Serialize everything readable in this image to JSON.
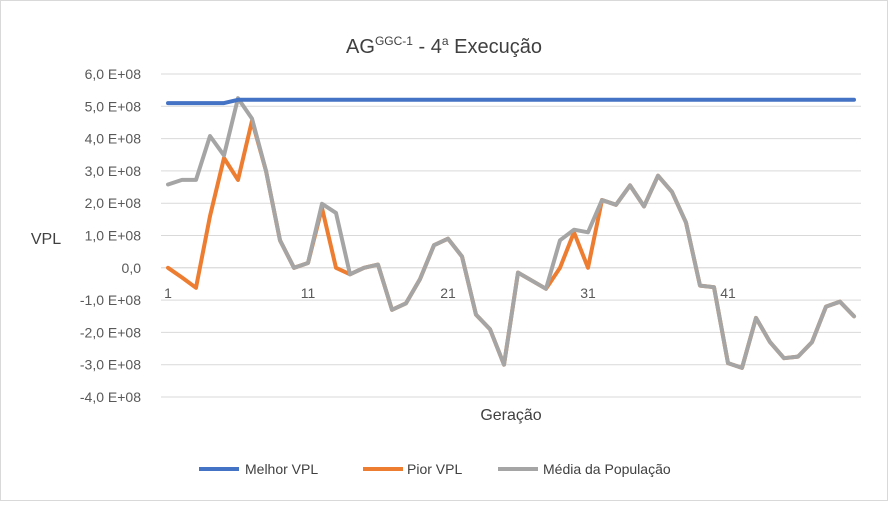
{
  "chart_data": {
    "type": "line",
    "title": {
      "main": "AG",
      "superscript": "GGC-1",
      "suffix": " - 4",
      "suffix_superscript": "a",
      "tail": " Execução"
    },
    "xlabel": "Geração",
    "ylabel": "VPL",
    "ylim": [
      -400000000,
      600000000
    ],
    "y_ticks": [
      {
        "value": 600000000,
        "label": "6,0 E+08"
      },
      {
        "value": 500000000,
        "label": "5,0 E+08"
      },
      {
        "value": 400000000,
        "label": "4,0 E+08"
      },
      {
        "value": 300000000,
        "label": "3,0 E+08"
      },
      {
        "value": 200000000,
        "label": "2,0 E+08"
      },
      {
        "value": 100000000,
        "label": "1,0 E+08"
      },
      {
        "value": 0,
        "label": "0,0"
      },
      {
        "value": -100000000,
        "label": "-1,0 E+08"
      },
      {
        "value": -200000000,
        "label": "-2,0 E+08"
      },
      {
        "value": -300000000,
        "label": "-3,0 E+08"
      },
      {
        "value": -400000000,
        "label": "-4,0 E+08"
      }
    ],
    "x_ticks": [
      1,
      11,
      21,
      31,
      41
    ],
    "x_count": 50,
    "grid": true,
    "legend_position": "bottom",
    "series": [
      {
        "name": "Melhor VPL",
        "color": "#4472c4",
        "values": [
          510000000,
          510000000,
          510000000,
          510000000,
          510000000,
          520000000,
          520000000,
          520000000,
          520000000,
          520000000,
          520000000,
          520000000,
          520000000,
          520000000,
          520000000,
          520000000,
          520000000,
          520000000,
          520000000,
          520000000,
          520000000,
          520000000,
          520000000,
          520000000,
          520000000,
          520000000,
          520000000,
          520000000,
          520000000,
          520000000,
          520000000,
          520000000,
          520000000,
          520000000,
          520000000,
          520000000,
          520000000,
          520000000,
          520000000,
          520000000,
          520000000,
          520000000,
          520000000,
          520000000,
          520000000,
          520000000,
          520000000,
          520000000,
          520000000,
          520000000
        ]
      },
      {
        "name": "Pior VPL",
        "color": "#ed7d31",
        "values": [
          0,
          -30000000,
          -62000000,
          160000000,
          340000000,
          272000000,
          455000000,
          300000000,
          85000000,
          0,
          15000000,
          185000000,
          0,
          -20000000,
          0,
          10000000,
          -130000000,
          -110000000,
          -35000000,
          70000000,
          90000000,
          35000000,
          -145000000,
          -190000000,
          -300000000,
          -15000000,
          -40000000,
          -65000000,
          0,
          110000000,
          0,
          210000000,
          195000000,
          255000000,
          190000000,
          285000000,
          235000000,
          140000000,
          -55000000,
          -60000000,
          -295000000,
          -310000000,
          -155000000,
          -230000000,
          -280000000,
          -275000000,
          -230000000,
          -120000000,
          -105000000,
          -150000000
        ]
      },
      {
        "name": "Média da População",
        "color": "#a5a5a5",
        "values": [
          258000000,
          272000000,
          272000000,
          408000000,
          348000000,
          525000000,
          462000000,
          300000000,
          85000000,
          0,
          15000000,
          198000000,
          170000000,
          -20000000,
          0,
          10000000,
          -130000000,
          -110000000,
          -35000000,
          70000000,
          90000000,
          35000000,
          -145000000,
          -190000000,
          -300000000,
          -15000000,
          -40000000,
          -65000000,
          85000000,
          118000000,
          110000000,
          210000000,
          195000000,
          255000000,
          190000000,
          285000000,
          235000000,
          140000000,
          -55000000,
          -60000000,
          -295000000,
          -310000000,
          -155000000,
          -230000000,
          -280000000,
          -275000000,
          -230000000,
          -120000000,
          -105000000,
          -150000000
        ]
      }
    ]
  }
}
